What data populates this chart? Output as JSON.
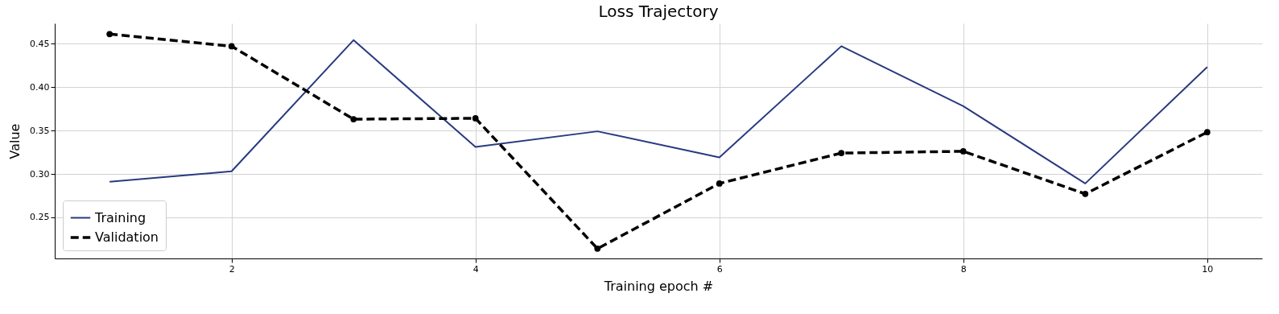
{
  "chart_data": {
    "type": "line",
    "title": "Loss Trajectory",
    "xlabel": "Training epoch #",
    "ylabel": "Value",
    "x": [
      1,
      2,
      3,
      4,
      5,
      6,
      7,
      8,
      9,
      10
    ],
    "series": [
      {
        "name": "Training",
        "color": "#283a80",
        "line_style": "solid",
        "marker": "none",
        "values": [
          0.291,
          0.303,
          0.454,
          0.331,
          0.349,
          0.319,
          0.447,
          0.378,
          0.289,
          0.423
        ]
      },
      {
        "name": "Validation",
        "color": "#000000",
        "line_style": "dashed",
        "marker": "circle",
        "values": [
          0.461,
          0.447,
          0.363,
          0.364,
          0.214,
          0.289,
          0.324,
          0.326,
          0.277,
          0.348
        ]
      }
    ],
    "xlim": [
      0.55,
      10.45
    ],
    "ylim": [
      0.2027,
      0.4733
    ],
    "xticks": [
      2,
      4,
      6,
      8,
      10
    ],
    "yticks": [
      0.25,
      {
        "value": 0.3,
        "label": "0.30"
      },
      0.35,
      {
        "value": 0.4,
        "label": "0.40"
      },
      0.45
    ],
    "grid": true,
    "legend": "bottom left"
  }
}
